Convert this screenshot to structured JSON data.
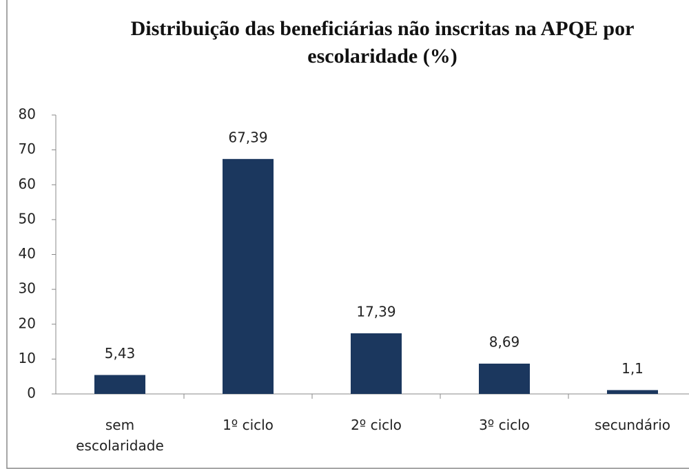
{
  "chart_data": {
    "type": "bar",
    "title": "Distribuição das beneficiárias não inscritas na APQE por escolaridade (%)",
    "categories": [
      "sem escolaridade",
      "1º ciclo",
      "2º ciclo",
      "3º ciclo",
      "secundário"
    ],
    "values": [
      5.43,
      67.39,
      17.39,
      8.69,
      1.1
    ],
    "value_labels": [
      "5,43",
      "67,39",
      "17,39",
      "8,69",
      "1,1"
    ],
    "color": "#1b375e",
    "ylim": [
      0,
      80
    ],
    "yticks": [
      0,
      10,
      20,
      30,
      40,
      50,
      60,
      70,
      80
    ],
    "grid": false
  }
}
